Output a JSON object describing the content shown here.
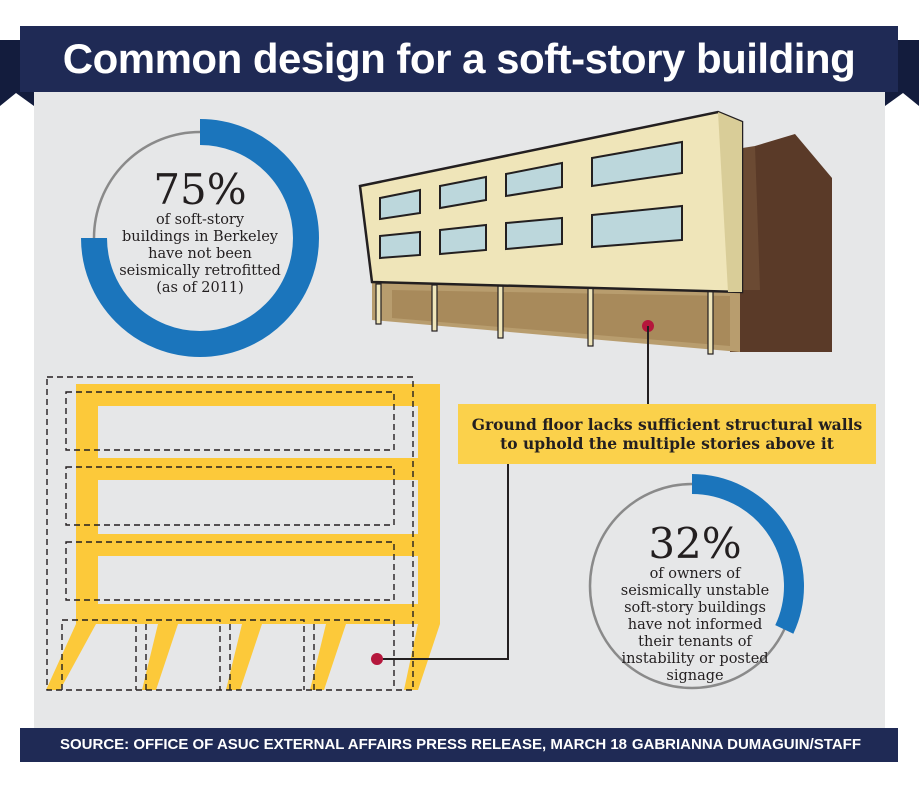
{
  "title": "Common design for a soft-story building",
  "stats": [
    {
      "value": "75%",
      "fraction": 0.75,
      "lines": [
        "of soft-story",
        "buildings in Berkeley",
        "have not been",
        "seismically retrofitted",
        "(as of 2011)"
      ]
    },
    {
      "value": "32%",
      "fraction": 0.32,
      "lines": [
        "of owners of",
        "seismically unstable",
        "soft-story buildings",
        "have not informed",
        "their tenants of",
        "instability or posted",
        "signage"
      ]
    }
  ],
  "callout": {
    "line1": "Ground floor lacks sufficient structural walls",
    "line2": "to uphold the multiple stories above it"
  },
  "footer": {
    "source": "SOURCE: OFFICE OF ASUC EXTERNAL AFFAIRS PRESS RELEASE, MARCH 18",
    "credit": "GABRIANNA DUMAGUIN/STAFF"
  },
  "colors": {
    "navy": "#1f2a55",
    "panel": "#e6e7e8",
    "blue": "#1b75bc",
    "gray": "#8a8a8a",
    "yellow": "#fcc93a",
    "callout_bg": "#fbd14b",
    "marker": "#b5173c",
    "facade": "#efe5b9",
    "window": "#bcd7dc",
    "ground": "#b89d6e",
    "side": "#5a3a28"
  }
}
